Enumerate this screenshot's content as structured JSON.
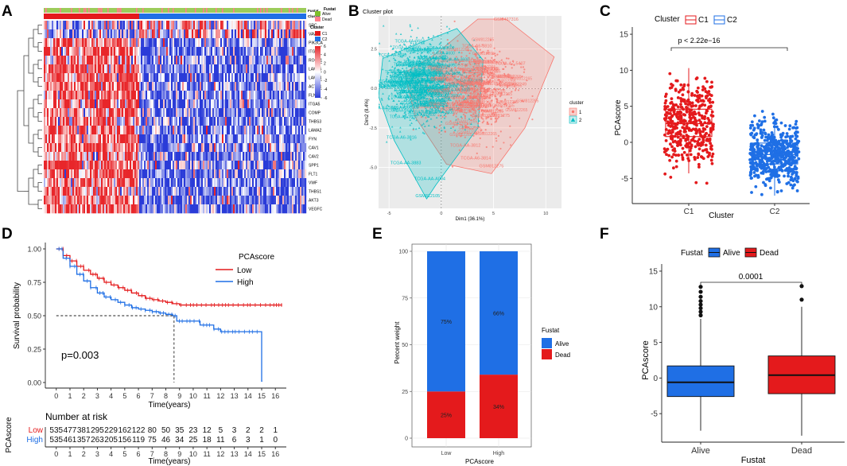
{
  "panels": {
    "a": "A",
    "b": "B",
    "c": "C",
    "d": "D",
    "e": "E",
    "f": "F"
  },
  "colors": {
    "red": "#e41a1c",
    "blue": "#1f6fe5",
    "dead_red": "#f8766d",
    "cyan": "#00bfc4",
    "green": "#7fbf2a",
    "pink": "#ff7f8a",
    "heat_red": "#e8262a",
    "heat_blue": "#2a3bd8"
  },
  "chart_data": [
    {
      "panel": "A",
      "type": "heatmap",
      "genes": [
        "SRC",
        "VAV3",
        "PIK3CA",
        "ITGB1",
        "ROCK1",
        "LAMA5",
        "LAMC1",
        "ACTN1",
        "FLNA",
        "ITGA5",
        "COMP",
        "THBS3",
        "LAMA2",
        "FYN",
        "CAV1",
        "CAV2",
        "SPP1",
        "FLT1",
        "VWF",
        "THBS1",
        "AKT3",
        "VEGFC"
      ],
      "annotation_rows": [
        "Fustat",
        "Cluster"
      ],
      "legend_fustat": {
        "title": "Fustat",
        "items": [
          "Alive",
          "Dead"
        ]
      },
      "legend_cluster": {
        "title": "Cluster",
        "items": [
          "C1",
          "C2"
        ]
      },
      "color_scale": {
        "ticks": [
          "6",
          "4",
          "2",
          "0",
          "-2",
          "-4",
          "-6"
        ],
        "range": [
          -6,
          6
        ]
      }
    },
    {
      "panel": "B",
      "type": "scatter",
      "title": "Cluster plot",
      "xlabel": "Dim1 (36.1%)",
      "ylabel": "Dim2 (8.4%)",
      "xticks": [
        "-5",
        "0",
        "5",
        "10"
      ],
      "yticks": [
        "2.5",
        "0.0",
        "-2.5",
        "-5.0"
      ],
      "xlim": [
        -6,
        11.5
      ],
      "ylim": [
        -7.6,
        4.6
      ],
      "legend": {
        "title": "cluster",
        "items": [
          "1",
          "2"
        ]
      },
      "labels": [
        {
          "text": "GSM437316",
          "x": 6.2,
          "y": 4.3,
          "series": 1
        },
        {
          "text": "TCGA-AZ-5407",
          "x": 6.6,
          "y": 1.5,
          "series": 1
        },
        {
          "text": "TCGA-A6-3810",
          "x": 3.4,
          "y": 2.6,
          "series": 1
        },
        {
          "text": "GSM81962",
          "x": 5.6,
          "y": 0.7,
          "series": 1
        },
        {
          "text": "GSM42249",
          "x": 7.1,
          "y": 0.2,
          "series": 1
        },
        {
          "text": "GSM81275",
          "x": 5.5,
          "y": -1.8,
          "series": 1
        },
        {
          "text": "GSM812275",
          "x": 4.8,
          "y": -5.0,
          "series": 1
        },
        {
          "text": "TCGA-A6-3814",
          "x": 3.3,
          "y": -4.5,
          "series": 1
        },
        {
          "text": "TCGA-AA-3812",
          "x": 2.3,
          "y": -3.7,
          "series": 1
        },
        {
          "text": "GSM437255",
          "x": -2.2,
          "y": 2.3,
          "series": 2
        },
        {
          "text": "GSM812279",
          "x": -4.3,
          "y": 0.3,
          "series": 2
        },
        {
          "text": "TCGA-A6-3816",
          "x": -3.8,
          "y": -3.2,
          "series": 2
        },
        {
          "text": "TCGA-AA-3883",
          "x": -3.4,
          "y": -4.8,
          "series": 2
        },
        {
          "text": "TCGA-AA-A004",
          "x": -1.1,
          "y": -5.8,
          "series": 2
        },
        {
          "text": "GSM812105",
          "x": -1.3,
          "y": -6.9,
          "series": 2
        },
        {
          "text": "TCGA-4A-3666",
          "x": -3.0,
          "y": 2.9,
          "series": 2
        }
      ]
    },
    {
      "panel": "C",
      "type": "scatter",
      "subtype": "box-jitter",
      "legend_title": "Cluster",
      "categories": [
        "C1",
        "C2"
      ],
      "xlabel": "Cluster",
      "ylabel": "PCAscore",
      "yticks": [
        -5,
        0,
        5,
        10,
        15
      ],
      "ylim": [
        -8.5,
        16
      ],
      "pvalue": "p < 2.22e−16",
      "series": [
        {
          "name": "C1",
          "q1": 0.8,
          "median": 2.6,
          "q3": 4.6,
          "whisker_low": -4.3,
          "whisker_high": 10.3,
          "min": -6.7,
          "max": 13.0
        },
        {
          "name": "C2",
          "q1": -3.0,
          "median": -1.7,
          "q3": -0.1,
          "whisker_low": -7.4,
          "whisker_high": 3.4,
          "min": -8.0,
          "max": 5.8
        }
      ]
    },
    {
      "panel": "D",
      "type": "line",
      "subtype": "kaplan-meier",
      "xlabel": "Time(years)",
      "ylabel": "Survival probability",
      "xticks": [
        0,
        1,
        2,
        3,
        4,
        5,
        6,
        7,
        8,
        9,
        10,
        11,
        12,
        13,
        14,
        15,
        16
      ],
      "yticks": [
        "0.00",
        "0.25",
        "0.50",
        "0.75",
        "1.00"
      ],
      "xlim": [
        -0.8,
        16.8
      ],
      "ylim": [
        0,
        1
      ],
      "legend_title": "PCAscore",
      "pvalue": "p=0.003",
      "median_line": {
        "x": 8.6,
        "y": 0.5
      },
      "series": [
        {
          "name": "Low",
          "x": [
            0,
            0.5,
            1,
            1.5,
            2,
            2.5,
            3,
            3.5,
            4,
            4.5,
            5,
            5.5,
            6,
            6.5,
            7,
            7.5,
            8,
            8.5,
            9,
            9.5,
            10,
            16.5
          ],
          "y": [
            1,
            0.95,
            0.91,
            0.87,
            0.84,
            0.81,
            0.78,
            0.75,
            0.73,
            0.71,
            0.69,
            0.67,
            0.65,
            0.63,
            0.62,
            0.61,
            0.6,
            0.59,
            0.58,
            0.58,
            0.58,
            0.58
          ]
        },
        {
          "name": "High",
          "x": [
            0,
            0.5,
            1,
            1.5,
            2,
            2.5,
            3,
            3.5,
            4,
            4.5,
            5,
            5.5,
            6,
            6.5,
            7,
            7.5,
            8,
            8.5,
            8.8,
            9.5,
            10.5,
            11.5,
            12,
            14,
            15,
            15,
            15.05
          ],
          "y": [
            1,
            0.93,
            0.87,
            0.81,
            0.76,
            0.71,
            0.67,
            0.64,
            0.62,
            0.6,
            0.58,
            0.56,
            0.55,
            0.54,
            0.53,
            0.52,
            0.51,
            0.5,
            0.46,
            0.46,
            0.43,
            0.4,
            0.38,
            0.38,
            0.38,
            0.01,
            0.01
          ]
        }
      ],
      "risk_table": {
        "title": "Number at risk",
        "ylabel": "PCAscore",
        "xlabel": "Time(years)",
        "rows": [
          {
            "name": "Low",
            "values": [
              "535",
              "477",
              "381",
              "295",
              "229",
              "162",
              "122",
              "80",
              "50",
              "35",
              "23",
              "12",
              "5",
              "3",
              "2",
              "2",
              "1"
            ]
          },
          {
            "name": "High",
            "values": [
              "535",
              "461",
              "357",
              "263",
              "205",
              "156",
              "119",
              "75",
              "46",
              "34",
              "25",
              "18",
              "11",
              "6",
              "3",
              "1",
              "0"
            ]
          }
        ]
      }
    },
    {
      "panel": "E",
      "type": "bar",
      "subtype": "stacked-percent",
      "categories": [
        "Low",
        "High"
      ],
      "xlabel": "PCAscore",
      "ylabel": "Percent weight",
      "yticks": [
        0,
        25,
        50,
        75,
        100
      ],
      "ylim": [
        0,
        100
      ],
      "legend_title": "Fustat",
      "series": [
        {
          "name": "Dead",
          "values": [
            25,
            34
          ],
          "labels": [
            "25%",
            "34%"
          ]
        },
        {
          "name": "Alive",
          "values": [
            75,
            66
          ],
          "labels": [
            "75%",
            "66%"
          ]
        }
      ]
    },
    {
      "panel": "F",
      "type": "bar",
      "subtype": "boxplot",
      "legend_title": "Fustat",
      "categories": [
        "Alive",
        "Dead"
      ],
      "xlabel": "Fustat",
      "ylabel": "PCAscore",
      "yticks": [
        -5,
        0,
        5,
        10,
        15
      ],
      "ylim": [
        -9,
        16
      ],
      "pvalue": "0.0001",
      "series": [
        {
          "name": "Alive",
          "q1": -2.6,
          "median": -0.6,
          "q3": 1.7,
          "whisker_low": -7.4,
          "whisker_high": 8.3,
          "outliers": [
            8.8,
            9.3,
            9.8,
            10.3,
            10.8,
            11.4,
            12.1,
            12.8
          ]
        },
        {
          "name": "Dead",
          "q1": -2.2,
          "median": 0.4,
          "q3": 3.1,
          "whisker_low": -8.1,
          "whisker_high": 10.0,
          "outliers": [
            11.0,
            12.9
          ]
        }
      ]
    }
  ]
}
